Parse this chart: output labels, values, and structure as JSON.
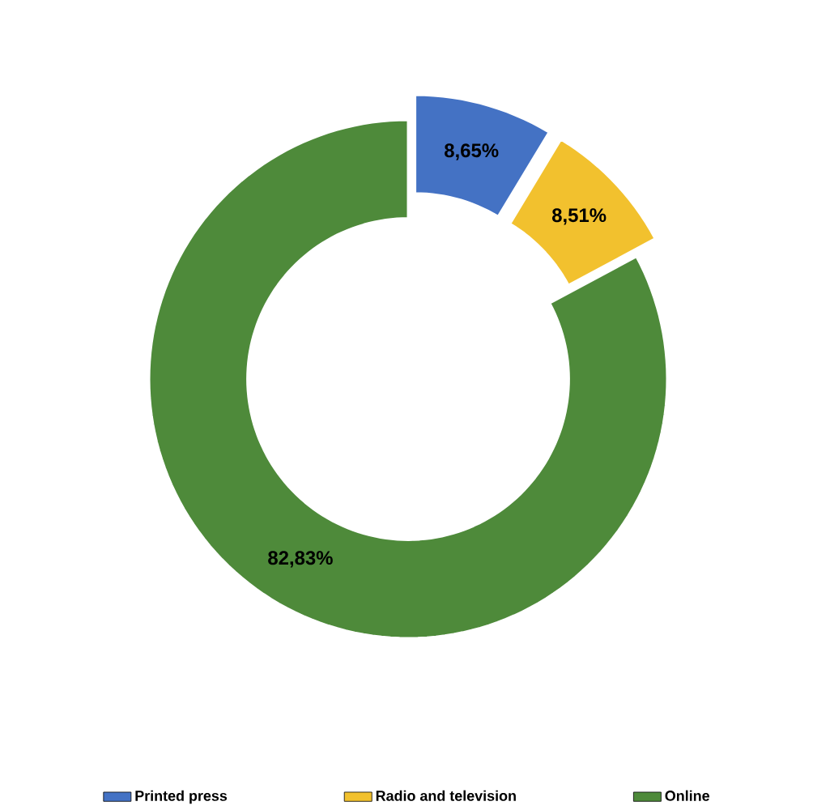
{
  "chart_data": {
    "type": "donut",
    "categories": [
      "Printed press",
      "Radio and television",
      "Online"
    ],
    "values": [
      8.65,
      8.51,
      82.83
    ],
    "colors": [
      "#4472c4",
      "#f2c12e",
      "#4e8a3a"
    ],
    "value_labels": [
      "8,65%",
      "8,51%",
      "82,83%"
    ],
    "legend": "bottom"
  }
}
